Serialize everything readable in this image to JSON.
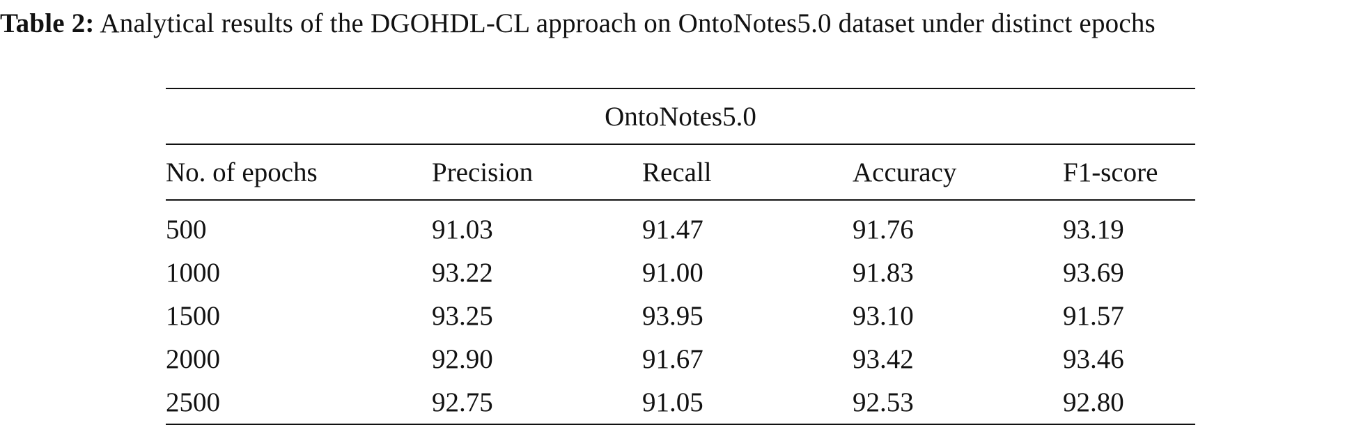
{
  "caption": {
    "label": "Table 2:",
    "text": " Analytical results of the DGOHDL-CL approach on OntoNotes5.0 dataset under distinct epochs"
  },
  "table": {
    "group_header": "OntoNotes5.0",
    "columns": [
      "No. of epochs",
      "Precision",
      "Recall",
      "Accuracy",
      "F1-score"
    ],
    "rows": [
      [
        "500",
        "91.03",
        "91.47",
        "91.76",
        "93.19"
      ],
      [
        "1000",
        "93.22",
        "91.00",
        "91.83",
        "93.69"
      ],
      [
        "1500",
        "93.25",
        "93.95",
        "93.10",
        "91.57"
      ],
      [
        "2000",
        "92.90",
        "91.67",
        "93.42",
        "93.46"
      ],
      [
        "2500",
        "92.75",
        "91.05",
        "92.53",
        "92.80"
      ]
    ]
  }
}
